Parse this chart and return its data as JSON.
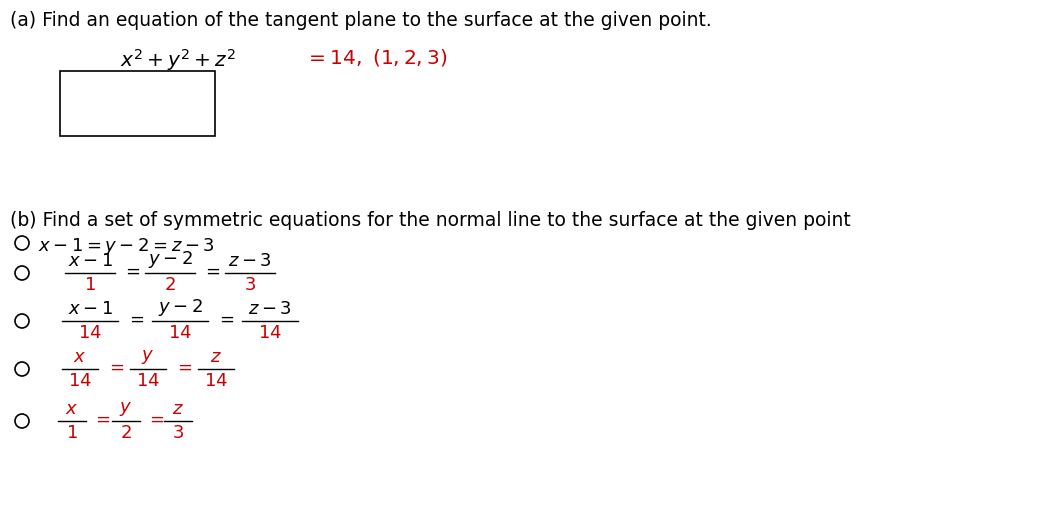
{
  "background_color": "#ffffff",
  "title_a": "(a) Find an equation of the tangent plane to the surface at the given point.",
  "title_b": "(b) Find a set of symmetric equations for the normal line to the surface at the given point",
  "text_color": "#000000",
  "red_color": "#cc0000",
  "fig_width": 10.49,
  "fig_height": 5.21,
  "dpi": 100
}
